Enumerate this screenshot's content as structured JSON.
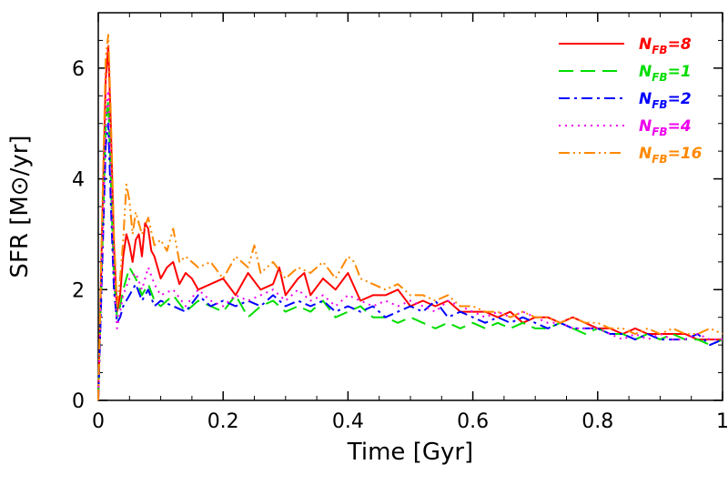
{
  "chart_data": {
    "type": "line",
    "xlabel": "Time [Gyr]",
    "ylabel": "SFR [M⊙/yr]",
    "xlim": [
      0,
      1
    ],
    "ylim": [
      0,
      7
    ],
    "x_ticks": [
      "0",
      "0.2",
      "0.4",
      "0.6",
      "0.8",
      "1"
    ],
    "x_tick_values": [
      0,
      0.2,
      0.4,
      0.6,
      0.8,
      1.0
    ],
    "y_ticks": [
      "0",
      "2",
      "4",
      "6"
    ],
    "y_tick_values": [
      0,
      2,
      4,
      6
    ],
    "grid": false,
    "legend_position": "top-right",
    "series": [
      {
        "name": "8",
        "label_main": "N",
        "label_sub": "FB",
        "label_suffix": "=8",
        "color": "#ff0000",
        "dash": "solid",
        "x": [
          0.0,
          0.006,
          0.012,
          0.016,
          0.02,
          0.025,
          0.03,
          0.035,
          0.04,
          0.045,
          0.05,
          0.055,
          0.06,
          0.065,
          0.07,
          0.075,
          0.08,
          0.085,
          0.09,
          0.1,
          0.11,
          0.12,
          0.13,
          0.14,
          0.15,
          0.16,
          0.18,
          0.2,
          0.22,
          0.24,
          0.26,
          0.28,
          0.29,
          0.3,
          0.32,
          0.33,
          0.34,
          0.36,
          0.38,
          0.4,
          0.42,
          0.44,
          0.46,
          0.48,
          0.5,
          0.52,
          0.54,
          0.56,
          0.58,
          0.6,
          0.62,
          0.64,
          0.66,
          0.68,
          0.7,
          0.72,
          0.74,
          0.76,
          0.78,
          0.8,
          0.82,
          0.84,
          0.86,
          0.88,
          0.9,
          0.92,
          0.94,
          0.96,
          0.98,
          1.0
        ],
        "values": [
          0.0,
          3.0,
          5.8,
          6.4,
          5.0,
          2.8,
          1.6,
          1.9,
          2.6,
          3.0,
          2.8,
          2.5,
          2.9,
          3.0,
          2.6,
          3.2,
          3.1,
          2.7,
          2.6,
          2.2,
          2.4,
          2.5,
          2.1,
          2.3,
          2.2,
          2.0,
          2.1,
          2.2,
          1.9,
          2.3,
          2.0,
          2.1,
          2.4,
          1.9,
          2.2,
          2.3,
          1.9,
          2.2,
          2.0,
          2.3,
          1.8,
          1.9,
          1.9,
          2.0,
          1.7,
          1.8,
          1.7,
          1.8,
          1.6,
          1.6,
          1.6,
          1.5,
          1.6,
          1.4,
          1.5,
          1.5,
          1.4,
          1.5,
          1.4,
          1.3,
          1.3,
          1.2,
          1.3,
          1.2,
          1.2,
          1.2,
          1.2,
          1.1,
          1.1,
          1.1
        ]
      },
      {
        "name": "1",
        "label_main": "N",
        "label_sub": "FB",
        "label_suffix": "=1",
        "color": "#00dd00",
        "dash": "16,8",
        "x": [
          0.0,
          0.006,
          0.012,
          0.016,
          0.02,
          0.025,
          0.03,
          0.035,
          0.04,
          0.05,
          0.06,
          0.07,
          0.08,
          0.09,
          0.1,
          0.12,
          0.14,
          0.16,
          0.18,
          0.2,
          0.22,
          0.24,
          0.26,
          0.28,
          0.3,
          0.32,
          0.34,
          0.36,
          0.38,
          0.4,
          0.42,
          0.44,
          0.46,
          0.48,
          0.5,
          0.52,
          0.54,
          0.56,
          0.58,
          0.6,
          0.62,
          0.64,
          0.66,
          0.68,
          0.7,
          0.72,
          0.74,
          0.76,
          0.78,
          0.8,
          0.82,
          0.84,
          0.86,
          0.88,
          0.9,
          0.92,
          0.94,
          0.96,
          0.98,
          1.0
        ],
        "values": [
          0.0,
          2.5,
          5.0,
          5.4,
          4.0,
          2.2,
          1.5,
          1.7,
          2.0,
          2.4,
          2.2,
          1.9,
          2.1,
          1.8,
          1.7,
          1.9,
          1.6,
          1.8,
          1.7,
          1.6,
          1.9,
          1.5,
          1.7,
          1.8,
          1.6,
          1.7,
          1.6,
          1.8,
          1.5,
          1.6,
          1.7,
          1.5,
          1.5,
          1.4,
          1.5,
          1.4,
          1.3,
          1.4,
          1.3,
          1.4,
          1.3,
          1.4,
          1.3,
          1.4,
          1.3,
          1.3,
          1.4,
          1.3,
          1.2,
          1.3,
          1.2,
          1.2,
          1.1,
          1.2,
          1.1,
          1.2,
          1.1,
          1.1,
          1.0,
          1.1
        ]
      },
      {
        "name": "2",
        "label_main": "N",
        "label_sub": "FB",
        "label_suffix": "=2",
        "color": "#0000ff",
        "dash": "12,5,3,5",
        "x": [
          0.0,
          0.006,
          0.012,
          0.016,
          0.02,
          0.025,
          0.03,
          0.035,
          0.04,
          0.05,
          0.06,
          0.07,
          0.08,
          0.09,
          0.1,
          0.12,
          0.14,
          0.16,
          0.18,
          0.2,
          0.22,
          0.24,
          0.26,
          0.28,
          0.3,
          0.32,
          0.34,
          0.36,
          0.38,
          0.4,
          0.42,
          0.44,
          0.46,
          0.48,
          0.5,
          0.52,
          0.54,
          0.56,
          0.58,
          0.6,
          0.62,
          0.64,
          0.66,
          0.68,
          0.7,
          0.72,
          0.74,
          0.76,
          0.78,
          0.8,
          0.82,
          0.84,
          0.86,
          0.88,
          0.9,
          0.92,
          0.94,
          0.96,
          0.98,
          1.0
        ],
        "values": [
          0.0,
          2.3,
          4.6,
          5.0,
          3.6,
          2.0,
          1.4,
          1.5,
          1.7,
          1.9,
          2.1,
          1.8,
          2.0,
          1.7,
          1.8,
          1.7,
          1.6,
          1.9,
          1.7,
          1.8,
          1.7,
          1.8,
          1.7,
          1.9,
          1.7,
          1.8,
          1.7,
          1.8,
          1.6,
          1.7,
          1.6,
          1.7,
          1.5,
          1.6,
          1.7,
          1.6,
          1.8,
          1.5,
          1.6,
          1.5,
          1.4,
          1.5,
          1.4,
          1.5,
          1.4,
          1.3,
          1.4,
          1.3,
          1.3,
          1.3,
          1.2,
          1.2,
          1.1,
          1.2,
          1.1,
          1.1,
          1.1,
          1.2,
          1.0,
          1.1
        ]
      },
      {
        "name": "4",
        "label_main": "N",
        "label_sub": "FB",
        "label_suffix": "=4",
        "color": "#ee00ee",
        "dash": "2,5",
        "x": [
          0.0,
          0.006,
          0.012,
          0.016,
          0.02,
          0.025,
          0.03,
          0.035,
          0.04,
          0.05,
          0.06,
          0.07,
          0.08,
          0.09,
          0.1,
          0.12,
          0.14,
          0.16,
          0.18,
          0.2,
          0.22,
          0.24,
          0.26,
          0.28,
          0.3,
          0.32,
          0.34,
          0.36,
          0.38,
          0.4,
          0.42,
          0.44,
          0.46,
          0.48,
          0.5,
          0.52,
          0.54,
          0.56,
          0.58,
          0.6,
          0.62,
          0.64,
          0.66,
          0.68,
          0.7,
          0.72,
          0.74,
          0.76,
          0.78,
          0.8,
          0.82,
          0.84,
          0.86,
          0.88,
          0.9,
          0.92,
          0.94,
          0.96,
          0.98,
          1.0
        ],
        "values": [
          0.0,
          2.5,
          5.0,
          5.6,
          4.2,
          2.3,
          1.3,
          1.6,
          1.9,
          2.2,
          2.3,
          2.0,
          2.4,
          2.1,
          1.9,
          2.0,
          1.7,
          2.0,
          1.8,
          1.7,
          1.9,
          1.8,
          1.9,
          2.0,
          1.8,
          2.0,
          1.8,
          1.9,
          1.7,
          1.9,
          1.8,
          1.7,
          1.8,
          1.7,
          1.8,
          1.7,
          1.6,
          1.8,
          1.7,
          1.6,
          1.5,
          1.6,
          1.5,
          1.6,
          1.5,
          1.4,
          1.4,
          1.3,
          1.3,
          1.3,
          1.2,
          1.1,
          1.2,
          1.1,
          1.2,
          1.1,
          1.1,
          1.2,
          1.1,
          1.1
        ]
      },
      {
        "name": "16",
        "label_main": "N",
        "label_sub": "FB",
        "label_suffix": "=16",
        "color": "#ff8800",
        "dash": "12,4,2,4,2,4",
        "x": [
          0.0,
          0.006,
          0.012,
          0.016,
          0.02,
          0.025,
          0.03,
          0.035,
          0.04,
          0.045,
          0.05,
          0.055,
          0.06,
          0.065,
          0.07,
          0.08,
          0.09,
          0.1,
          0.11,
          0.12,
          0.13,
          0.14,
          0.16,
          0.18,
          0.2,
          0.22,
          0.24,
          0.25,
          0.26,
          0.28,
          0.3,
          0.32,
          0.34,
          0.36,
          0.38,
          0.4,
          0.41,
          0.42,
          0.44,
          0.46,
          0.48,
          0.5,
          0.52,
          0.54,
          0.56,
          0.58,
          0.6,
          0.62,
          0.64,
          0.66,
          0.68,
          0.7,
          0.72,
          0.74,
          0.76,
          0.78,
          0.8,
          0.82,
          0.84,
          0.86,
          0.88,
          0.9,
          0.92,
          0.94,
          0.96,
          0.98,
          1.0
        ],
        "values": [
          0.0,
          3.2,
          6.2,
          6.6,
          5.2,
          3.0,
          1.7,
          2.2,
          2.9,
          3.9,
          3.6,
          3.0,
          3.4,
          3.2,
          3.0,
          3.3,
          2.8,
          2.9,
          2.7,
          3.1,
          2.5,
          2.6,
          2.4,
          2.5,
          2.2,
          2.6,
          2.4,
          2.8,
          2.3,
          2.5,
          2.2,
          2.4,
          2.3,
          2.5,
          2.2,
          2.6,
          2.5,
          2.2,
          2.1,
          2.0,
          2.1,
          1.9,
          1.9,
          1.8,
          1.9,
          1.7,
          1.7,
          1.6,
          1.6,
          1.5,
          1.6,
          1.5,
          1.5,
          1.4,
          1.5,
          1.4,
          1.4,
          1.3,
          1.3,
          1.2,
          1.3,
          1.2,
          1.3,
          1.2,
          1.2,
          1.3,
          1.2
        ]
      }
    ]
  }
}
